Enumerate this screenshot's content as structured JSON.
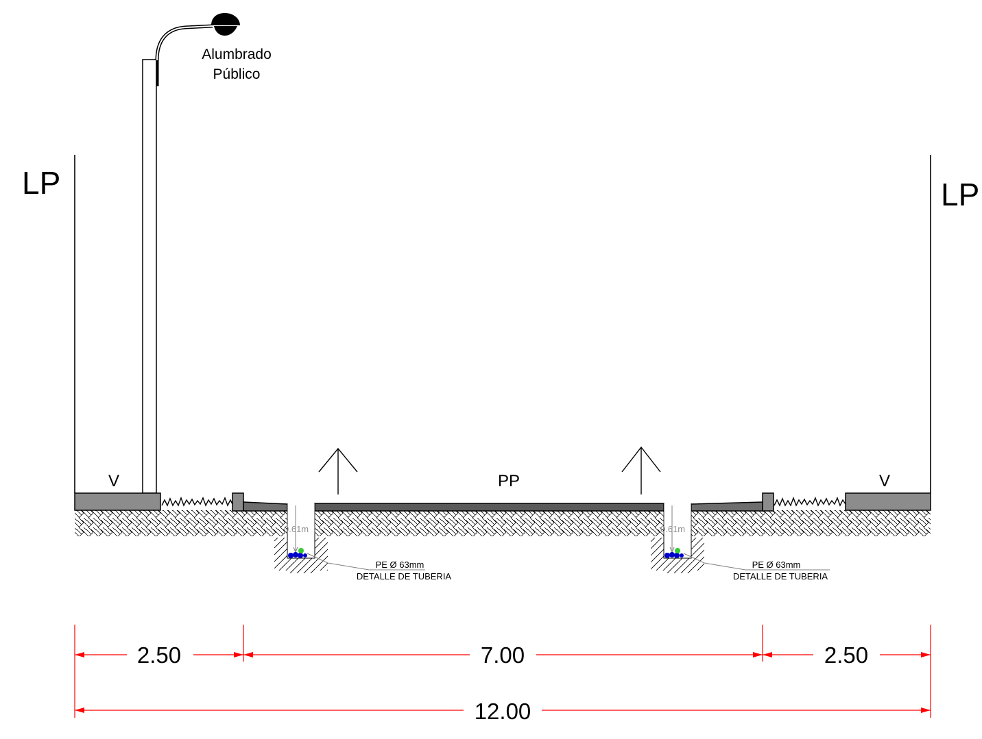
{
  "labels": {
    "lp_left": "LP",
    "lp_right": "LP",
    "streetlight_line1": "Alumbrado",
    "streetlight_line2": "Público",
    "sidewalk_left": "V",
    "sidewalk_right": "V",
    "roadway": "PP"
  },
  "trenches": [
    {
      "depth": "0.61m",
      "pipe": "PE Ø 63mm",
      "detail": "DETALLE DE TUBERIA"
    },
    {
      "depth": "0.61m",
      "pipe": "PE Ø 63mm",
      "detail": "DETALLE DE TUBERIA"
    }
  ],
  "dimensions": {
    "left_sidewalk": "2.50",
    "roadway": "7.00",
    "right_sidewalk": "2.50",
    "total": "12.00"
  },
  "colors": {
    "line": "#000000",
    "dimension": "#ff0000",
    "concrete": "#8c8c8c",
    "pavement": "#5a5a5a",
    "pipe_blue": "#0000cc",
    "pipe_green": "#33cc33",
    "leader": "#808080"
  }
}
